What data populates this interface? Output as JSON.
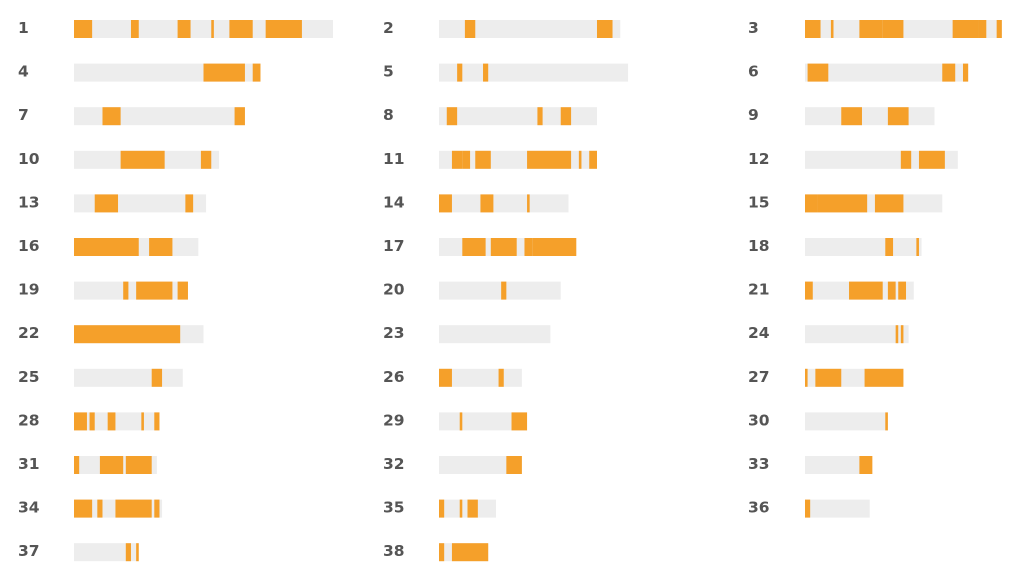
{
  "colors": {
    "track": "#ededed",
    "highlight": "#f5a02a",
    "label": "#555555"
  },
  "chart_data": {
    "type": "bar",
    "title": "",
    "xlabel": "",
    "ylabel": "",
    "scale_max": 100,
    "grid": false,
    "legend": "none",
    "columns": 3,
    "rows": [
      {
        "label": "1",
        "length": 100,
        "segments": [
          [
            0,
            7
          ],
          [
            22,
            25
          ],
          [
            40,
            45
          ],
          [
            53,
            54
          ],
          [
            60,
            69
          ],
          [
            74,
            88
          ]
        ]
      },
      {
        "label": "2",
        "length": 70,
        "segments": [
          [
            10,
            14
          ],
          [
            61,
            67
          ]
        ]
      },
      {
        "label": "3",
        "length": 76,
        "segments": [
          [
            0,
            6
          ],
          [
            10,
            11
          ],
          [
            21,
            30
          ],
          [
            30,
            38
          ],
          [
            57,
            67
          ],
          [
            67,
            70
          ],
          [
            74,
            76
          ]
        ]
      },
      {
        "label": "4",
        "length": 72,
        "segments": [
          [
            50,
            66
          ],
          [
            69,
            72
          ]
        ]
      },
      {
        "label": "5",
        "length": 73,
        "segments": [
          [
            7,
            9
          ],
          [
            17,
            19
          ]
        ]
      },
      {
        "label": "6",
        "length": 63,
        "segments": [
          [
            1,
            9
          ],
          [
            53,
            58
          ],
          [
            61,
            63
          ]
        ]
      },
      {
        "label": "7",
        "length": 66,
        "segments": [
          [
            11,
            18
          ],
          [
            62,
            66
          ]
        ]
      },
      {
        "label": "8",
        "length": 61,
        "segments": [
          [
            3,
            7
          ],
          [
            38,
            40
          ],
          [
            47,
            51
          ]
        ]
      },
      {
        "label": "9",
        "length": 50,
        "segments": [
          [
            14,
            22
          ],
          [
            32,
            40
          ]
        ]
      },
      {
        "label": "10",
        "length": 56,
        "segments": [
          [
            18,
            35
          ],
          [
            49,
            53
          ]
        ]
      },
      {
        "label": "11",
        "length": 61,
        "segments": [
          [
            5,
            9
          ],
          [
            9,
            12
          ],
          [
            14,
            20
          ],
          [
            34,
            51
          ],
          [
            54,
            55
          ],
          [
            58,
            61
          ]
        ]
      },
      {
        "label": "12",
        "length": 59,
        "segments": [
          [
            37,
            41
          ],
          [
            44,
            54
          ]
        ]
      },
      {
        "label": "13",
        "length": 51,
        "segments": [
          [
            8,
            17
          ],
          [
            43,
            46
          ]
        ]
      },
      {
        "label": "14",
        "length": 50,
        "segments": [
          [
            0,
            5
          ],
          [
            16,
            21
          ],
          [
            34,
            35
          ]
        ]
      },
      {
        "label": "15",
        "length": 53,
        "segments": [
          [
            0,
            5
          ],
          [
            5,
            24
          ],
          [
            27,
            38
          ]
        ]
      },
      {
        "label": "16",
        "length": 48,
        "segments": [
          [
            0,
            25
          ],
          [
            29,
            38
          ]
        ]
      },
      {
        "label": "17",
        "length": 53,
        "segments": [
          [
            9,
            18
          ],
          [
            20,
            30
          ],
          [
            33,
            36
          ],
          [
            36,
            53
          ]
        ]
      },
      {
        "label": "18",
        "length": 45,
        "segments": [
          [
            31,
            34
          ],
          [
            43,
            44
          ]
        ]
      },
      {
        "label": "19",
        "length": 44,
        "segments": [
          [
            19,
            21
          ],
          [
            24,
            38
          ],
          [
            40,
            44
          ]
        ]
      },
      {
        "label": "20",
        "length": 47,
        "segments": [
          [
            24,
            26
          ]
        ]
      },
      {
        "label": "21",
        "length": 42,
        "segments": [
          [
            0,
            3
          ],
          [
            17,
            30
          ],
          [
            32,
            35
          ],
          [
            36,
            39
          ]
        ]
      },
      {
        "label": "22",
        "length": 50,
        "segments": [
          [
            0,
            41
          ]
        ]
      },
      {
        "label": "23",
        "length": 43,
        "segments": []
      },
      {
        "label": "24",
        "length": 40,
        "segments": [
          [
            35,
            36
          ],
          [
            37,
            38
          ]
        ]
      },
      {
        "label": "25",
        "length": 42,
        "segments": [
          [
            30,
            34
          ]
        ]
      },
      {
        "label": "26",
        "length": 32,
        "segments": [
          [
            0,
            5
          ],
          [
            23,
            25
          ]
        ]
      },
      {
        "label": "27",
        "length": 38,
        "segments": [
          [
            0,
            1
          ],
          [
            4,
            14
          ],
          [
            23,
            38
          ]
        ]
      },
      {
        "label": "28",
        "length": 33,
        "segments": [
          [
            0,
            5
          ],
          [
            6,
            8
          ],
          [
            13,
            16
          ],
          [
            26,
            27
          ],
          [
            31,
            33
          ]
        ]
      },
      {
        "label": "29",
        "length": 34,
        "segments": [
          [
            8,
            9
          ],
          [
            28,
            34
          ]
        ]
      },
      {
        "label": "30",
        "length": 32,
        "segments": [
          [
            31,
            32
          ]
        ]
      },
      {
        "label": "31",
        "length": 32,
        "segments": [
          [
            0,
            2
          ],
          [
            10,
            19
          ],
          [
            20,
            30
          ]
        ]
      },
      {
        "label": "32",
        "length": 32,
        "segments": [
          [
            26,
            32
          ]
        ]
      },
      {
        "label": "33",
        "length": 26,
        "segments": [
          [
            21,
            26
          ]
        ]
      },
      {
        "label": "34",
        "length": 34,
        "segments": [
          [
            0,
            7
          ],
          [
            9,
            11
          ],
          [
            16,
            30
          ],
          [
            31,
            33
          ]
        ]
      },
      {
        "label": "35",
        "length": 22,
        "segments": [
          [
            0,
            2
          ],
          [
            8,
            9
          ],
          [
            11,
            15
          ]
        ]
      },
      {
        "label": "36",
        "length": 25,
        "segments": [
          [
            0,
            2
          ]
        ]
      },
      {
        "label": "37",
        "length": 25,
        "segments": [
          [
            20,
            22
          ],
          [
            24,
            25
          ]
        ]
      },
      {
        "label": "38",
        "length": 19,
        "segments": [
          [
            0,
            2
          ],
          [
            5,
            19
          ]
        ]
      }
    ]
  }
}
